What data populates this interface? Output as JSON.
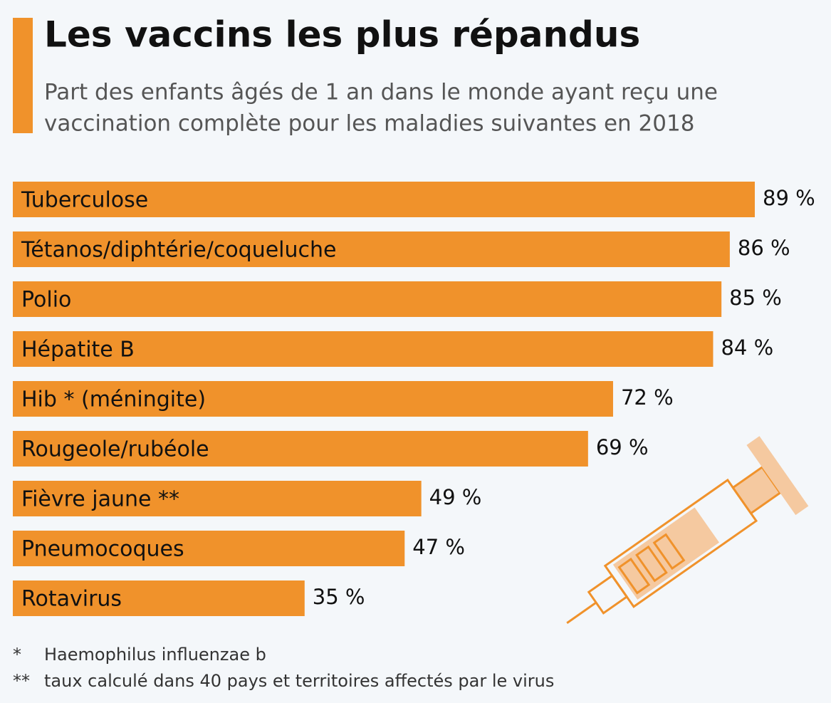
{
  "chart_data": {
    "type": "bar",
    "orientation": "horizontal",
    "title": "Les vaccins les plus répandus",
    "subtitle": [
      "Part des enfants âgés de 1 an dans le monde ayant reçu une",
      "vaccination complète pour les maladies suivantes en 2018"
    ],
    "categories": [
      "Tuberculose",
      "Tétanos/diphtérie/coqueluche",
      "Polio",
      "Hépatite B",
      "Hib * (méningite)",
      "Rougeole/rubéole",
      "Fièvre jaune **",
      "Pneumocoques",
      "Rotavirus"
    ],
    "values": [
      89,
      86,
      85,
      84,
      72,
      69,
      49,
      47,
      35
    ],
    "value_labels": [
      "89 %",
      "86 %",
      "85 %",
      "84 %",
      "72 %",
      "69 %",
      "49 %",
      "47 %",
      "35 %"
    ],
    "color": "#f0922b",
    "notes": [
      {
        "marker": "*",
        "text": "Haemophilus influenzae b"
      },
      {
        "marker": "**",
        "text": "taux calculé dans 40 pays et territoires affectés par le virus"
      }
    ]
  }
}
